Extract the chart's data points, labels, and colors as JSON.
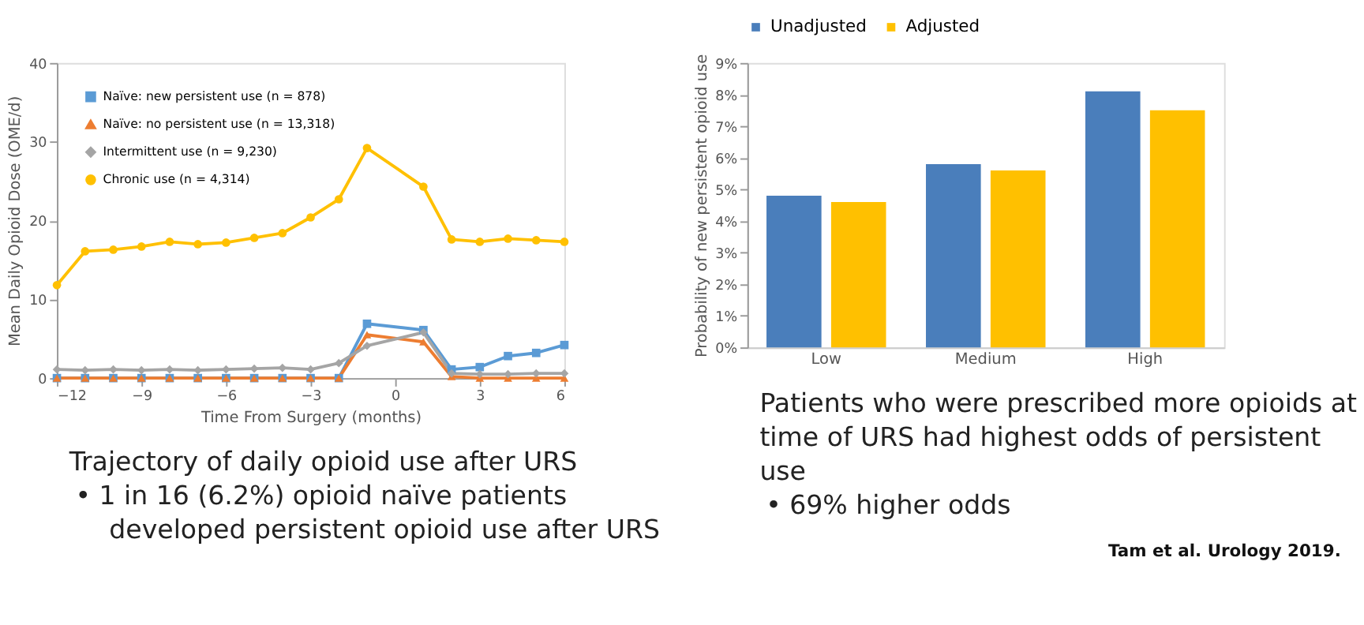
{
  "chart_data": [
    {
      "type": "line",
      "xlabel": "Time From Surgery (months)",
      "ylabel": "Mean Daily Opioid Dose (OME/d)",
      "xlim": [
        -12,
        6
      ],
      "xticks": [
        -12,
        -9,
        -6,
        -3,
        0,
        3,
        6
      ],
      "ylim": [
        0,
        40
      ],
      "yticks": [
        0,
        10,
        20,
        30,
        40
      ],
      "grid": false,
      "legend": "top left",
      "line_style": "solid",
      "x": [
        -12,
        -11,
        -10,
        -9,
        -8,
        -7,
        -6,
        -5,
        -4,
        -3,
        -2,
        -1,
        1,
        2,
        3,
        4,
        5,
        6
      ],
      "series": [
        {
          "name": "Naïve: new persistent use (n = 878)",
          "color": "#5b9bd5",
          "marker": "square",
          "values": [
            0,
            0,
            0,
            0,
            0,
            0,
            0,
            0,
            0,
            0,
            0,
            6.9,
            6.1,
            1.1,
            1.4,
            2.8,
            3.2,
            4.2
          ]
        },
        {
          "name": "Naïve: no persistent use (n = 13,318)",
          "color": "#ed7d31",
          "marker": "triangle",
          "values": [
            0,
            0,
            0,
            0,
            0,
            0,
            0,
            0,
            0,
            0,
            0,
            5.5,
            4.6,
            0.2,
            0,
            0,
            0,
            0
          ]
        },
        {
          "name": "Intermittent use (n = 9,230)",
          "color": "#a5a5a5",
          "marker": "diamond",
          "values": [
            1.1,
            1.0,
            1.1,
            1.0,
            1.1,
            1.0,
            1.1,
            1.2,
            1.3,
            1.1,
            1.9,
            4.1,
            5.8,
            0.6,
            0.5,
            0.5,
            0.6,
            0.6
          ]
        },
        {
          "name": "Chronic use (n = 4,314)",
          "color": "#ffc000",
          "marker": "circle",
          "values": [
            11.8,
            16.1,
            16.3,
            16.7,
            17.3,
            17.0,
            17.2,
            17.8,
            18.4,
            20.4,
            22.7,
            29.2,
            24.3,
            17.6,
            17.3,
            17.7,
            17.5,
            17.3
          ]
        }
      ],
      "annotations": [
        "Trajectory of daily opioid use after URS",
        "• 1 in 16 (6.2%) opioid naïve patients developed persistent opioid use after URS"
      ]
    },
    {
      "type": "bar",
      "ylabel": "Probability of new persistent opioid use",
      "categories": [
        "Low",
        "Medium",
        "High"
      ],
      "ylim": [
        0,
        9
      ],
      "yticks": [
        {
          "value": 0,
          "label": "0%"
        },
        {
          "value": 1,
          "label": "1%"
        },
        {
          "value": 2,
          "label": "2%"
        },
        {
          "value": 3,
          "label": "3%"
        },
        {
          "value": 4,
          "label": "4%"
        },
        {
          "value": 5,
          "label": "5%"
        },
        {
          "value": 6,
          "label": "6%"
        },
        {
          "value": 7,
          "label": "7%"
        },
        {
          "value": 8,
          "label": "8%"
        },
        {
          "value": 9,
          "label": "9%"
        }
      ],
      "grid": false,
      "legend": "top",
      "series": [
        {
          "name": "Unadjusted",
          "color": "#4a7ebb",
          "values": [
            4.8,
            5.8,
            8.1
          ]
        },
        {
          "name": "Adjusted",
          "color": "#ffc000",
          "values": [
            4.6,
            5.6,
            7.5
          ]
        }
      ],
      "annotations": [
        "Patients who were prescribed more opioids at time of URS had highest odds of persistent use",
        "• 69% higher odds",
        "Tam et al. Urology 2019."
      ]
    }
  ]
}
